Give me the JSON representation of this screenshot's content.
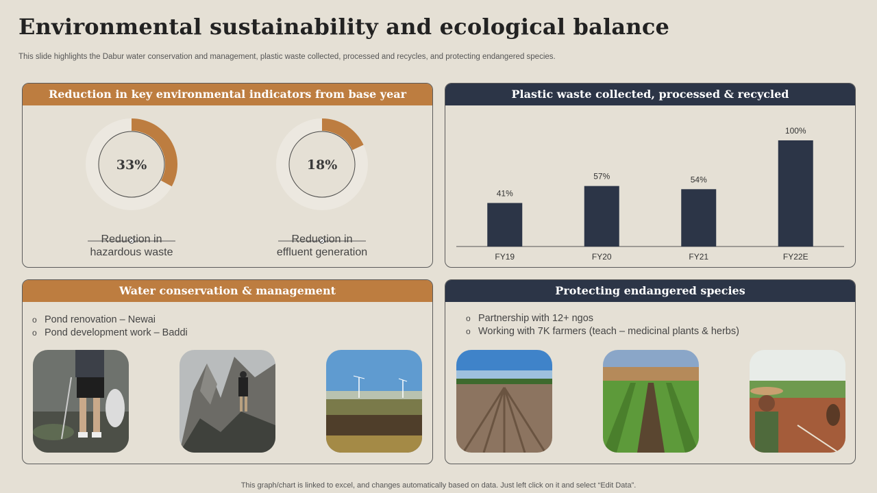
{
  "title": "Environmental sustainability and ecological balance",
  "subtitle": "This slide highlights the Dabur water conservation and management, plastic waste collected, processed and recycles, and protecting endangered species.",
  "colors": {
    "orange": "#bd7d40",
    "navy": "#2c3547",
    "ring": "#ece8e0",
    "background": "#e5e0d5"
  },
  "indicators": {
    "header": "Reduction in key environmental indicators from base year",
    "items": [
      {
        "percent": 33,
        "value_label": "33%",
        "label_line1": "Reduction in",
        "label_line2": "hazardous waste"
      },
      {
        "percent": 18,
        "value_label": "18%",
        "label_line1": "Reduction in",
        "label_line2": "effluent generation"
      }
    ]
  },
  "plastic": {
    "header": "Plastic waste collected, processed & recycled"
  },
  "chart_data": {
    "type": "bar",
    "title": "Plastic waste collected, processed & recycled",
    "categories": [
      "FY19",
      "FY20",
      "FY21",
      "FY22E"
    ],
    "values": [
      41,
      57,
      54,
      100
    ],
    "value_labels": [
      "41%",
      "57%",
      "54%",
      "100%"
    ],
    "ylim": [
      0,
      100
    ],
    "grid": false,
    "color": "#2c3547"
  },
  "water": {
    "header": "Water conservation & management",
    "bullets": [
      "Pond renovation – Newai",
      "Pond development work – Baddi"
    ],
    "photos": [
      "person-picking-litter-photo",
      "hiker-mountain-photo",
      "wind-turbines-landscape-photo"
    ]
  },
  "species": {
    "header": "Protecting endangered species",
    "bullets": [
      "Partnership with 12+ ngos",
      "Working with 7K farmers (teach – medicinal plants & herbs)"
    ],
    "photos": [
      "plowed-field-photo",
      "crop-rows-photo",
      "farmer-plowing-photo"
    ]
  },
  "footer": "This graph/chart is linked to excel,  and changes automatically based on data. Just left click on it and select “Edit Data”."
}
